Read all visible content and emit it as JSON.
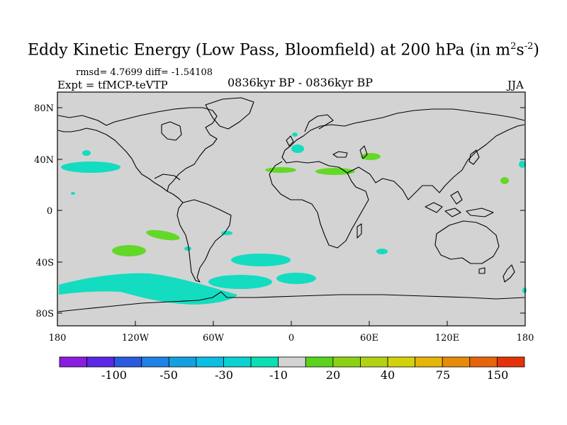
{
  "title": {
    "main": "Eddy Kinetic Energy (Low Pass, Bloomfield) at 200 hPa (in m",
    "exp1": "2",
    "mid": "s",
    "exp2": "-2",
    "close": ")"
  },
  "stats": "rmsd= 4.7699 diff= -1.54108",
  "experiment": "Expt = tfMCP-teVTP",
  "period": "0836kyr BP - 0836kyr BP",
  "season": "JJA",
  "lat_labels": [
    "80N",
    "40N",
    "0",
    "40S",
    "80S"
  ],
  "lon_labels": [
    "180",
    "120W",
    "60W",
    "0",
    "60E",
    "120E",
    "180"
  ],
  "colorbar": {
    "colors": [
      "#8a1ee0",
      "#5a28e6",
      "#2a5ae0",
      "#1e82e6",
      "#14a0e0",
      "#0cbee6",
      "#0ad2d2",
      "#0ae0b4",
      "#d3d3d3",
      "#5ad21e",
      "#8cd214",
      "#b4d214",
      "#d2d20a",
      "#e6b40a",
      "#e68c0a",
      "#e6640a",
      "#e6320a"
    ],
    "labels": [
      "-100",
      "-50",
      "-30",
      "-10",
      "20",
      "40",
      "75",
      "150"
    ]
  },
  "colors": {
    "land_ocean": "#d3d3d3",
    "negative": "#14dcc0",
    "positive": "#64d828"
  }
}
